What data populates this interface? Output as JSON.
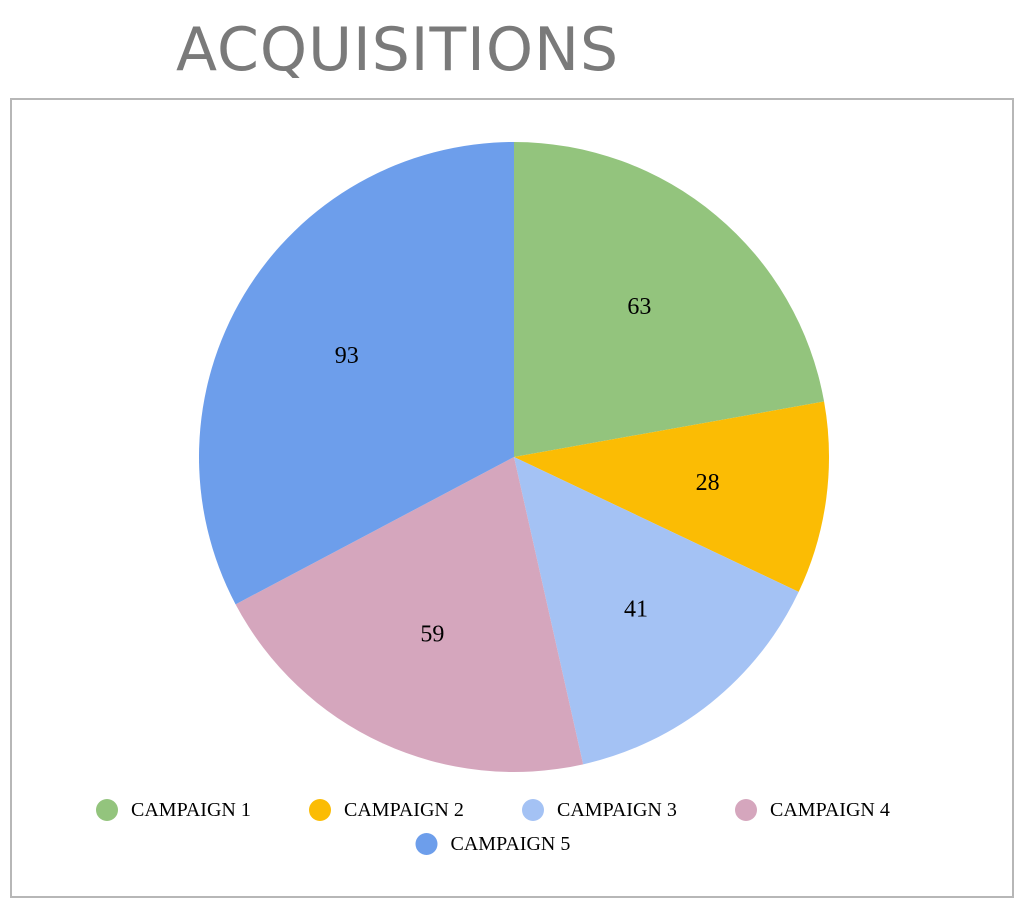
{
  "chart_data": {
    "type": "pie",
    "title": "ACQUISITIONS",
    "categories": [
      "CAMPAIGN 1",
      "CAMPAIGN 2",
      "CAMPAIGN 3",
      "CAMPAIGN 4",
      "CAMPAIGN 5"
    ],
    "values": [
      63,
      28,
      41,
      59,
      93
    ],
    "colors": [
      "#93c47d",
      "#fbbc04",
      "#a4c2f4",
      "#d5a6bd",
      "#6d9eeb"
    ],
    "data_labels": true,
    "legend_position": "bottom",
    "start_angle": "top, clockwise"
  }
}
